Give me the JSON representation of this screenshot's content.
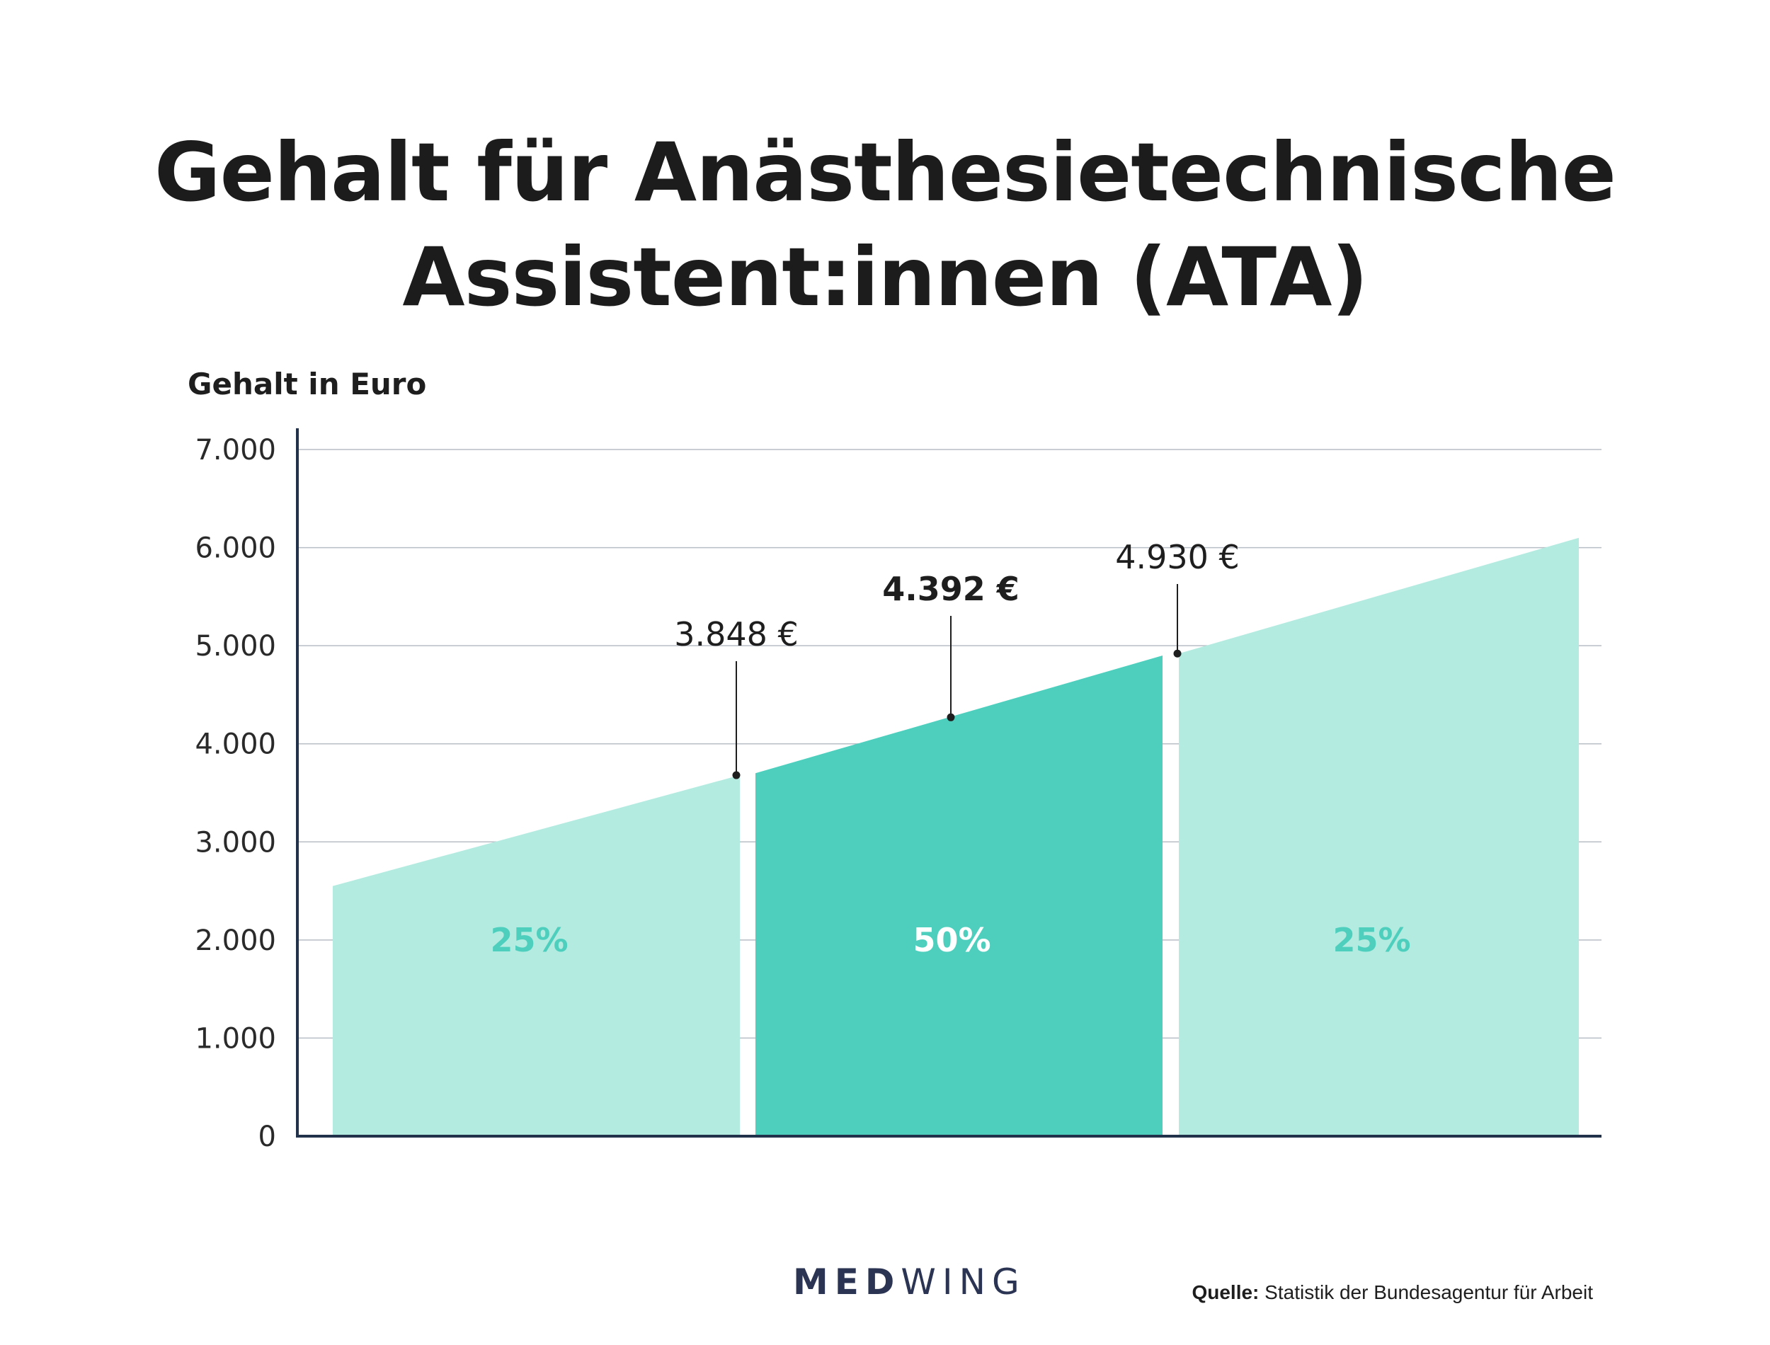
{
  "title": {
    "line1": "Gehalt für Anästhesietechnische",
    "line2": "Assistent:innen (ATA)"
  },
  "chart_data": {
    "type": "area",
    "ylabel": "Gehalt in Euro",
    "ylim": [
      0,
      7000
    ],
    "yticks": [
      "7.000",
      "6.000",
      "5.000",
      "4.000",
      "3.000",
      "2.000",
      "1.000",
      "0"
    ],
    "grid": true,
    "segments": [
      {
        "share": "25%",
        "y_start": 2550,
        "y_end": 3680,
        "highlight": false
      },
      {
        "share": "50%",
        "y_start": 3700,
        "y_end": 4900,
        "highlight": true
      },
      {
        "share": "25%",
        "y_start": 4920,
        "y_end": 6100,
        "highlight": false
      }
    ],
    "annotations": [
      {
        "label": "3.848 €",
        "value": 3680,
        "bold": false
      },
      {
        "label": "4.392 €",
        "value": 4270,
        "bold": true
      },
      {
        "label": "4.930 €",
        "value": 4920,
        "bold": false
      }
    ],
    "colors": {
      "light": "#b4ebe1",
      "dark": "#4ecfbe",
      "label_light": "#4ecfbe",
      "label_dark": "#ffffff",
      "axis": "#22324a",
      "grid": "#b8bec6"
    }
  },
  "footer": {
    "brand_bold": "MED",
    "brand_light": "WING",
    "source_label": "Quelle:",
    "source_text": " Statistik der Bundesagentur für Arbeit"
  }
}
